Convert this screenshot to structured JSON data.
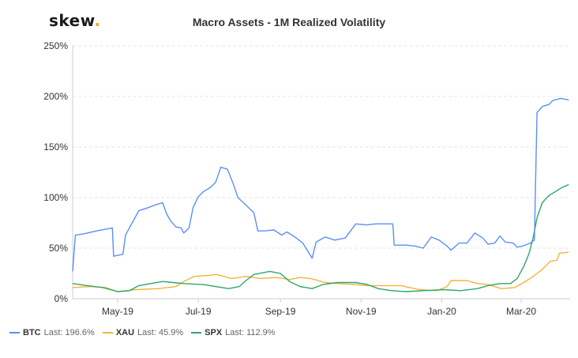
{
  "brand": {
    "name": "skew",
    "dot": "."
  },
  "chart_data": {
    "type": "line",
    "title": "Macro Assets - 1M Realized Volatility",
    "xlabel": "",
    "ylabel": "",
    "ylim": [
      0,
      250
    ],
    "y_ticks": [
      "0%",
      "50%",
      "100%",
      "150%",
      "200%",
      "250%"
    ],
    "x_ticks": [
      "May-19",
      "Jul-19",
      "Sep-19",
      "Nov-19",
      "Jan-20",
      "Mar-20"
    ],
    "x_tick_dates": [
      "2019-05-01",
      "2019-07-01",
      "2019-09-01",
      "2019-11-01",
      "2020-01-01",
      "2020-03-01"
    ],
    "x_range": [
      "2019-03-28",
      "2020-04-07"
    ],
    "grid": "horizontal dashed",
    "legend_position": "bottom-left",
    "series": [
      {
        "name": "BTC",
        "last_label": "Last: 196.6%",
        "color": "#5b8ff9",
        "points": [
          [
            "2019-03-28",
            27
          ],
          [
            "2019-03-30",
            63
          ],
          [
            "2019-04-05",
            64
          ],
          [
            "2019-04-15",
            67
          ],
          [
            "2019-04-27",
            70
          ],
          [
            "2019-04-28",
            42
          ],
          [
            "2019-05-05",
            44
          ],
          [
            "2019-05-07",
            63
          ],
          [
            "2019-05-12",
            75
          ],
          [
            "2019-05-17",
            87
          ],
          [
            "2019-05-24",
            90
          ],
          [
            "2019-05-30",
            93
          ],
          [
            "2019-06-04",
            95
          ],
          [
            "2019-06-07",
            84
          ],
          [
            "2019-06-10",
            77
          ],
          [
            "2019-06-14",
            71
          ],
          [
            "2019-06-18",
            70
          ],
          [
            "2019-06-20",
            65
          ],
          [
            "2019-06-24",
            70
          ],
          [
            "2019-06-27",
            90
          ],
          [
            "2019-07-01",
            101
          ],
          [
            "2019-07-05",
            106
          ],
          [
            "2019-07-10",
            110
          ],
          [
            "2019-07-14",
            115
          ],
          [
            "2019-07-18",
            130
          ],
          [
            "2019-07-23",
            128
          ],
          [
            "2019-07-27",
            115
          ],
          [
            "2019-07-31",
            100
          ],
          [
            "2019-08-04",
            95
          ],
          [
            "2019-08-08",
            90
          ],
          [
            "2019-08-12",
            85
          ],
          [
            "2019-08-15",
            67
          ],
          [
            "2019-08-20",
            67
          ],
          [
            "2019-08-27",
            68
          ],
          [
            "2019-09-02",
            63
          ],
          [
            "2019-09-06",
            66
          ],
          [
            "2019-09-12",
            61
          ],
          [
            "2019-09-18",
            55
          ],
          [
            "2019-09-25",
            40
          ],
          [
            "2019-09-28",
            56
          ],
          [
            "2019-10-05",
            61
          ],
          [
            "2019-10-12",
            58
          ],
          [
            "2019-10-20",
            60
          ],
          [
            "2019-10-28",
            74
          ],
          [
            "2019-11-05",
            73
          ],
          [
            "2019-11-12",
            74
          ],
          [
            "2019-11-20",
            74
          ],
          [
            "2019-11-25",
            74
          ],
          [
            "2019-11-26",
            53
          ],
          [
            "2019-12-05",
            53
          ],
          [
            "2019-12-12",
            52
          ],
          [
            "2019-12-18",
            50
          ],
          [
            "2019-12-24",
            61
          ],
          [
            "2019-12-30",
            58
          ],
          [
            "2020-01-05",
            52
          ],
          [
            "2020-01-08",
            48
          ],
          [
            "2020-01-14",
            55
          ],
          [
            "2020-01-20",
            55
          ],
          [
            "2020-01-26",
            65
          ],
          [
            "2020-02-01",
            60
          ],
          [
            "2020-02-05",
            54
          ],
          [
            "2020-02-10",
            55
          ],
          [
            "2020-02-14",
            62
          ],
          [
            "2020-02-18",
            56
          ],
          [
            "2020-02-24",
            55
          ],
          [
            "2020-02-27",
            51
          ],
          [
            "2020-03-02",
            52
          ],
          [
            "2020-03-08",
            55
          ],
          [
            "2020-03-11",
            58
          ],
          [
            "2020-03-12",
            120
          ],
          [
            "2020-03-13",
            184
          ],
          [
            "2020-03-17",
            190
          ],
          [
            "2020-03-22",
            192
          ],
          [
            "2020-03-25",
            196
          ],
          [
            "2020-03-31",
            198
          ],
          [
            "2020-04-06",
            196.6
          ]
        ]
      },
      {
        "name": "XAU",
        "last_label": "Last: 45.9%",
        "color": "#f2b43b",
        "points": [
          [
            "2019-03-28",
            11
          ],
          [
            "2019-04-10",
            12
          ],
          [
            "2019-04-22",
            11
          ],
          [
            "2019-05-01",
            7
          ],
          [
            "2019-05-15",
            9
          ],
          [
            "2019-06-01",
            10
          ],
          [
            "2019-06-14",
            12
          ],
          [
            "2019-06-20",
            17
          ],
          [
            "2019-06-28",
            22
          ],
          [
            "2019-07-08",
            23
          ],
          [
            "2019-07-15",
            24
          ],
          [
            "2019-07-26",
            20
          ],
          [
            "2019-08-06",
            22
          ],
          [
            "2019-08-18",
            20
          ],
          [
            "2019-08-29",
            21
          ],
          [
            "2019-09-08",
            19
          ],
          [
            "2019-09-16",
            21
          ],
          [
            "2019-09-24",
            20
          ],
          [
            "2019-10-05",
            16
          ],
          [
            "2019-10-15",
            15
          ],
          [
            "2019-10-28",
            14
          ],
          [
            "2019-11-05",
            13
          ],
          [
            "2019-11-18",
            13
          ],
          [
            "2019-12-01",
            13
          ],
          [
            "2019-12-15",
            9
          ],
          [
            "2019-12-28",
            8
          ],
          [
            "2020-01-05",
            12
          ],
          [
            "2020-01-08",
            18
          ],
          [
            "2020-01-20",
            18
          ],
          [
            "2020-01-28",
            15
          ],
          [
            "2020-02-05",
            14
          ],
          [
            "2020-02-15",
            10
          ],
          [
            "2020-02-25",
            11
          ],
          [
            "2020-03-03",
            16
          ],
          [
            "2020-03-10",
            22
          ],
          [
            "2020-03-17",
            29
          ],
          [
            "2020-03-23",
            37
          ],
          [
            "2020-03-28",
            38
          ],
          [
            "2020-03-30",
            45
          ],
          [
            "2020-04-06",
            45.9
          ]
        ]
      },
      {
        "name": "SPX",
        "last_label": "Last: 112.9%",
        "color": "#2ca86b",
        "points": [
          [
            "2019-03-28",
            15
          ],
          [
            "2019-04-08",
            13
          ],
          [
            "2019-04-20",
            11
          ],
          [
            "2019-05-01",
            7
          ],
          [
            "2019-05-10",
            8
          ],
          [
            "2019-05-17",
            13
          ],
          [
            "2019-05-26",
            15
          ],
          [
            "2019-06-04",
            17
          ],
          [
            "2019-06-12",
            16
          ],
          [
            "2019-06-20",
            15
          ],
          [
            "2019-07-05",
            14
          ],
          [
            "2019-07-14",
            12
          ],
          [
            "2019-07-24",
            10
          ],
          [
            "2019-08-01",
            12
          ],
          [
            "2019-08-06",
            18
          ],
          [
            "2019-08-12",
            24
          ],
          [
            "2019-08-24",
            27
          ],
          [
            "2019-09-01",
            25
          ],
          [
            "2019-09-08",
            17
          ],
          [
            "2019-09-16",
            12
          ],
          [
            "2019-09-25",
            10
          ],
          [
            "2019-10-03",
            14
          ],
          [
            "2019-10-14",
            16
          ],
          [
            "2019-10-28",
            16
          ],
          [
            "2019-11-06",
            14
          ],
          [
            "2019-11-14",
            10
          ],
          [
            "2019-11-24",
            8
          ],
          [
            "2019-12-05",
            7
          ],
          [
            "2019-12-18",
            8
          ],
          [
            "2020-01-03",
            9
          ],
          [
            "2020-01-15",
            8
          ],
          [
            "2020-01-28",
            10
          ],
          [
            "2020-02-05",
            13
          ],
          [
            "2020-02-14",
            15
          ],
          [
            "2020-02-22",
            15
          ],
          [
            "2020-02-27",
            20
          ],
          [
            "2020-03-03",
            32
          ],
          [
            "2020-03-07",
            45
          ],
          [
            "2020-03-10",
            60
          ],
          [
            "2020-03-13",
            80
          ],
          [
            "2020-03-17",
            95
          ],
          [
            "2020-03-22",
            102
          ],
          [
            "2020-03-27",
            106
          ],
          [
            "2020-04-01",
            110
          ],
          [
            "2020-04-06",
            112.9
          ]
        ]
      }
    ]
  }
}
